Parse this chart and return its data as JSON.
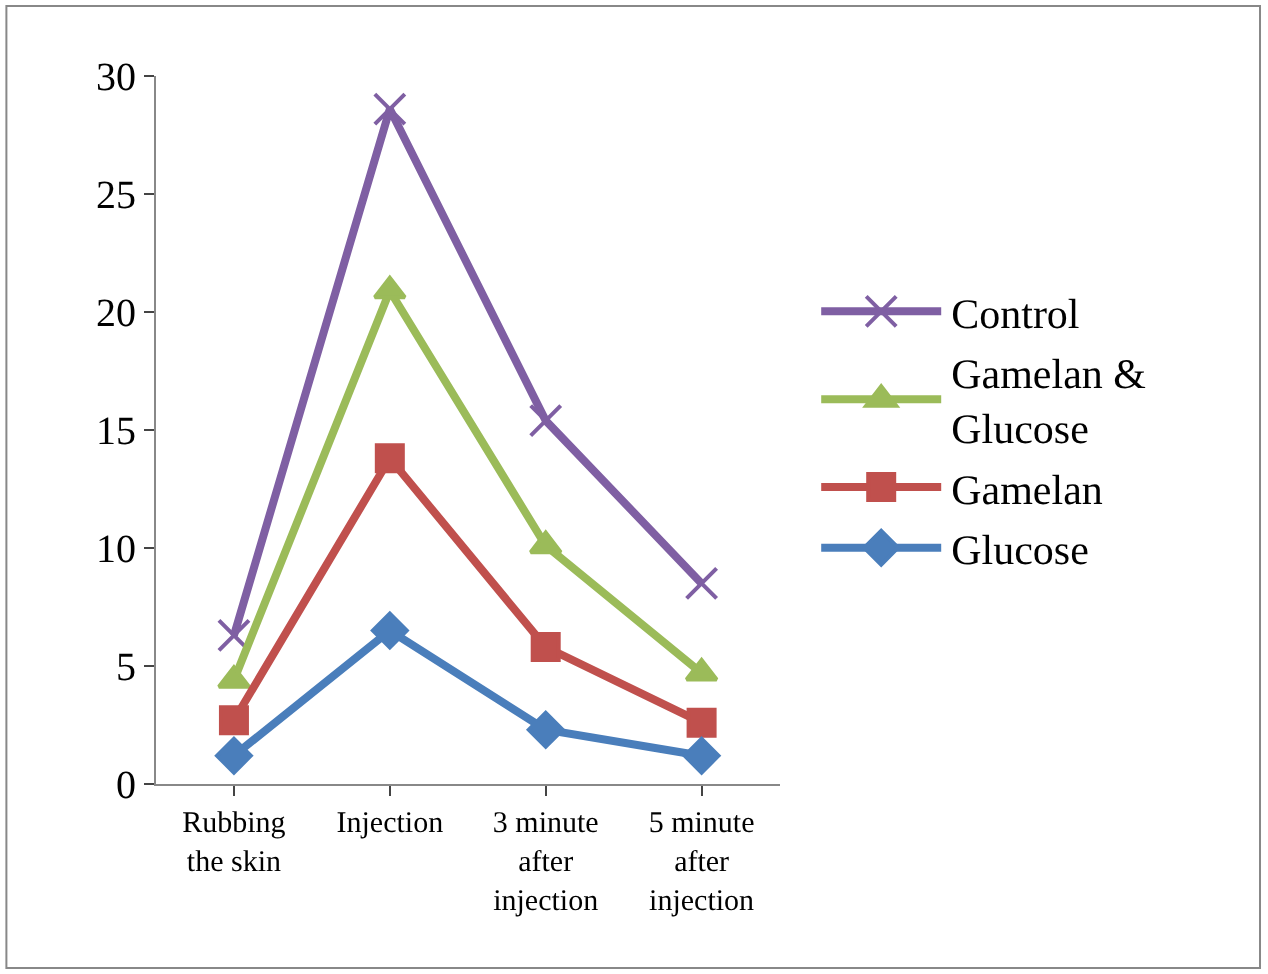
{
  "chart_data": {
    "type": "line",
    "categories": [
      "Rubbing the skin",
      "Injection",
      "3 minute after injection",
      "5 minute after injection"
    ],
    "series": [
      {
        "name": "Control",
        "color": "#7f5fa3",
        "marker": "cross",
        "values": [
          6.3,
          28.6,
          15.4,
          8.5
        ]
      },
      {
        "name": "Gamelan & Glucose",
        "color": "#9bbb59",
        "marker": "triangle",
        "values": [
          4.4,
          20.9,
          10.1,
          4.7
        ]
      },
      {
        "name": "Gamelan",
        "color": "#c0504d",
        "marker": "square",
        "values": [
          2.7,
          13.8,
          5.8,
          2.6
        ]
      },
      {
        "name": "Glucose",
        "color": "#4a7ebb",
        "marker": "diamond",
        "values": [
          1.2,
          6.5,
          2.3,
          1.2
        ]
      }
    ],
    "ylim": [
      0,
      30
    ],
    "yticks": [
      0,
      5,
      10,
      15,
      20,
      25,
      30
    ],
    "legend": "right"
  }
}
